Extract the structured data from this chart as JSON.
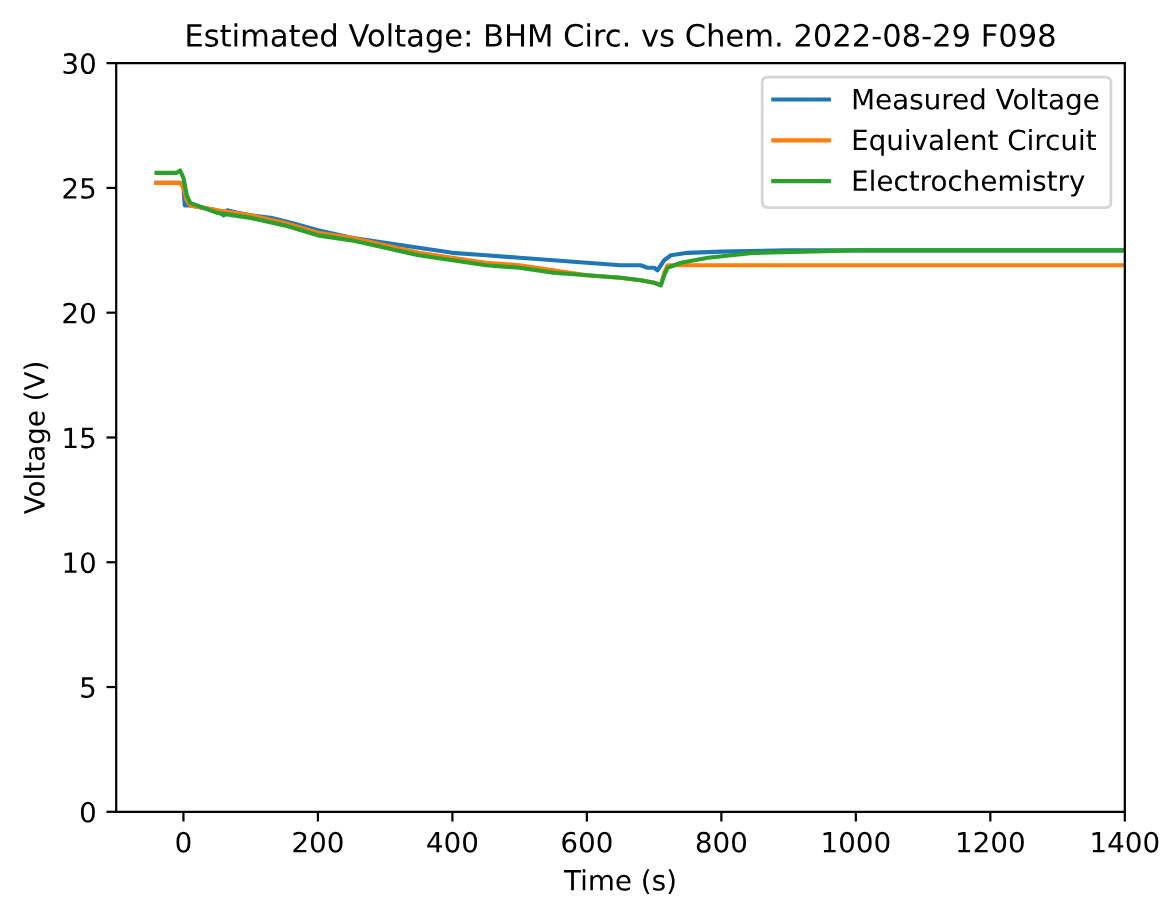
{
  "chart_data": {
    "type": "line",
    "title": "Estimated Voltage: BHM Circ. vs Chem. 2022-08-29 F098",
    "xlabel": "Time (s)",
    "ylabel": "Voltage (V)",
    "xlim": [
      -100,
      1400
    ],
    "ylim": [
      0,
      30
    ],
    "xticks": [
      0,
      200,
      400,
      600,
      800,
      1000,
      1200,
      1400
    ],
    "yticks": [
      0,
      5,
      10,
      15,
      20,
      25,
      30
    ],
    "grid": false,
    "legend": "top right",
    "line_style": "solid",
    "marker": "none",
    "series": [
      {
        "name": "Measured Voltage",
        "color": "#1f77b4",
        "x": [
          -40,
          -5,
          0,
          2,
          10,
          30,
          50,
          60,
          65,
          80,
          100,
          130,
          160,
          200,
          250,
          300,
          350,
          400,
          450,
          500,
          550,
          600,
          650,
          680,
          690,
          700,
          705,
          710,
          715,
          725,
          750,
          800,
          900,
          1000,
          1400
        ],
        "values": [
          25.2,
          25.2,
          25.1,
          24.3,
          24.3,
          24.2,
          24.1,
          23.9,
          24.1,
          24.0,
          23.9,
          23.8,
          23.6,
          23.3,
          23.0,
          22.8,
          22.6,
          22.4,
          22.3,
          22.2,
          22.1,
          22.0,
          21.9,
          21.9,
          21.8,
          21.8,
          21.7,
          21.9,
          22.1,
          22.3,
          22.4,
          22.45,
          22.5,
          22.5,
          22.5
        ]
      },
      {
        "name": "Equivalent Circuit",
        "color": "#ff7f0e",
        "x": [
          -40,
          -5,
          0,
          5,
          10,
          30,
          50,
          100,
          150,
          200,
          250,
          300,
          350,
          400,
          450,
          500,
          550,
          600,
          650,
          680,
          700,
          710,
          715,
          720,
          800,
          1000,
          1400
        ],
        "values": [
          25.2,
          25.2,
          25.0,
          24.5,
          24.3,
          24.2,
          24.1,
          23.9,
          23.6,
          23.2,
          23.0,
          22.7,
          22.4,
          22.2,
          22.0,
          21.9,
          21.7,
          21.5,
          21.4,
          21.3,
          21.2,
          21.1,
          21.6,
          21.9,
          21.9,
          21.9,
          21.9
        ]
      },
      {
        "name": "Electrochemistry",
        "color": "#2ca02c",
        "x": [
          -40,
          -10,
          -5,
          0,
          5,
          10,
          30,
          50,
          100,
          150,
          200,
          250,
          300,
          350,
          400,
          450,
          500,
          550,
          600,
          650,
          680,
          700,
          710,
          715,
          720,
          740,
          780,
          850,
          1000,
          1400
        ],
        "values": [
          25.6,
          25.6,
          25.7,
          25.4,
          24.7,
          24.4,
          24.2,
          24.0,
          23.8,
          23.5,
          23.1,
          22.9,
          22.6,
          22.3,
          22.1,
          21.9,
          21.8,
          21.6,
          21.5,
          21.4,
          21.3,
          21.2,
          21.1,
          21.5,
          21.8,
          22.0,
          22.2,
          22.4,
          22.5,
          22.5
        ]
      }
    ]
  }
}
